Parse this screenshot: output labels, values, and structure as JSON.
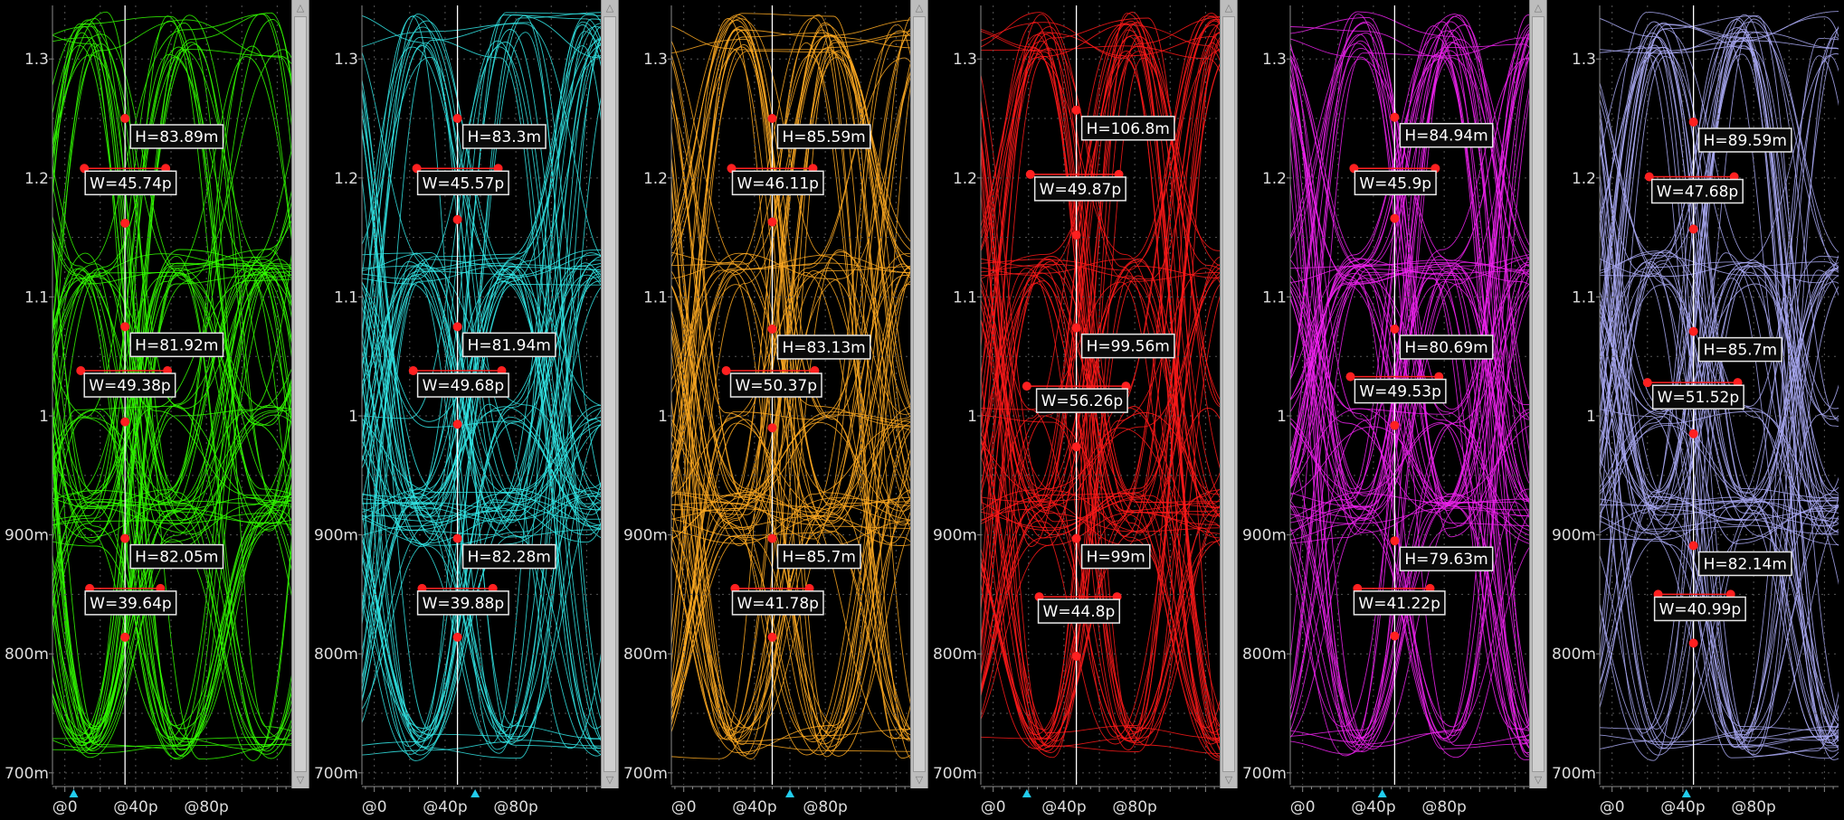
{
  "colors": {
    "background": "#000000",
    "axis": "#8a8a8a",
    "grid": "#555555",
    "marker": "#ff2020",
    "cursor_line": "#ffffff",
    "time_marker": "#22ccee"
  },
  "chart_data": [
    {
      "type": "scatter",
      "name": "eye-diagram",
      "color": "#33ff00",
      "y_ticks": [
        "1.3",
        "1.2",
        "1.1",
        "1",
        "900m",
        "800m",
        "700m"
      ],
      "y_tick_values": [
        1.3,
        1.2,
        1.1,
        1.0,
        0.9,
        0.8,
        0.7
      ],
      "x_ticks": [
        "@0",
        "@40p",
        "@80p"
      ],
      "x_tick_values": [
        0,
        40,
        80
      ],
      "ylim": [
        0.69,
        1.345
      ],
      "xlim": [
        -7,
        128
      ],
      "cursor_x": 34,
      "time_marker_x": 5,
      "measurements": [
        {
          "h_label": "H=83.89m",
          "w_label": "W=45.74p",
          "y_top": 1.25,
          "y_bot": 1.162,
          "w_y": 1.208,
          "w_x1": 11,
          "w_x2": 57
        },
        {
          "h_label": "H=81.92m",
          "w_label": "W=49.38p",
          "y_top": 1.075,
          "y_bot": 0.995,
          "w_y": 1.038,
          "w_x1": 9,
          "w_x2": 58
        },
        {
          "h_label": "H=82.05m",
          "w_label": "W=39.64p",
          "y_top": 0.897,
          "y_bot": 0.814,
          "w_y": 0.855,
          "w_x1": 14,
          "w_x2": 54
        }
      ]
    },
    {
      "type": "scatter",
      "name": "eye-diagram",
      "color": "#33e6e6",
      "y_ticks": [
        "1.3",
        "1.2",
        "1.1",
        "1",
        "900m",
        "800m",
        "700m"
      ],
      "y_tick_values": [
        1.3,
        1.2,
        1.1,
        1.0,
        0.9,
        0.8,
        0.7
      ],
      "x_ticks": [
        "@0",
        "@40p",
        "@80p"
      ],
      "x_tick_values": [
        0,
        40,
        80
      ],
      "ylim": [
        0.69,
        1.345
      ],
      "xlim": [
        -7,
        128
      ],
      "cursor_x": 47,
      "time_marker_x": 57,
      "measurements": [
        {
          "h_label": "H=83.3m",
          "w_label": "W=45.57p",
          "y_top": 1.25,
          "y_bot": 1.165,
          "w_y": 1.208,
          "w_x1": 24,
          "w_x2": 70
        },
        {
          "h_label": "H=81.94m",
          "w_label": "W=49.68p",
          "y_top": 1.075,
          "y_bot": 0.993,
          "w_y": 1.038,
          "w_x1": 22,
          "w_x2": 72
        },
        {
          "h_label": "H=82.28m",
          "w_label": "W=39.88p",
          "y_top": 0.897,
          "y_bot": 0.814,
          "w_y": 0.855,
          "w_x1": 27,
          "w_x2": 67
        }
      ]
    },
    {
      "type": "scatter",
      "name": "eye-diagram",
      "color": "#ffaa22",
      "y_ticks": [
        "1.3",
        "1.2",
        "1.1",
        "1",
        "900m",
        "800m",
        "700m"
      ],
      "y_tick_values": [
        1.3,
        1.2,
        1.1,
        1.0,
        0.9,
        0.8,
        0.7
      ],
      "x_ticks": [
        "@0",
        "@40p",
        "@80p"
      ],
      "x_tick_values": [
        0,
        40,
        80
      ],
      "ylim": [
        0.69,
        1.345
      ],
      "xlim": [
        -7,
        128
      ],
      "cursor_x": 50,
      "time_marker_x": 60,
      "measurements": [
        {
          "h_label": "H=85.59m",
          "w_label": "W=46.11p",
          "y_top": 1.25,
          "y_bot": 1.163,
          "w_y": 1.208,
          "w_x1": 27,
          "w_x2": 73
        },
        {
          "h_label": "H=83.13m",
          "w_label": "W=50.37p",
          "y_top": 1.073,
          "y_bot": 0.99,
          "w_y": 1.038,
          "w_x1": 24,
          "w_x2": 74
        },
        {
          "h_label": "H=85.7m",
          "w_label": "W=41.78p",
          "y_top": 0.897,
          "y_bot": 0.814,
          "w_y": 0.855,
          "w_x1": 29,
          "w_x2": 71
        }
      ]
    },
    {
      "type": "scatter",
      "name": "eye-diagram",
      "color": "#ff1a1a",
      "y_ticks": [
        "1.3",
        "1.2",
        "1.1",
        "1",
        "900m",
        "800m",
        "700m"
      ],
      "y_tick_values": [
        1.3,
        1.2,
        1.1,
        1.0,
        0.9,
        0.8,
        0.7
      ],
      "x_ticks": [
        "@0",
        "@40p",
        "@80p"
      ],
      "x_tick_values": [
        0,
        40,
        80
      ],
      "ylim": [
        0.69,
        1.345
      ],
      "xlim": [
        -7,
        128
      ],
      "cursor_x": 47,
      "time_marker_x": 19,
      "measurements": [
        {
          "h_label": "H=106.8m",
          "w_label": "W=49.87p",
          "y_top": 1.257,
          "y_bot": 1.152,
          "w_y": 1.203,
          "w_x1": 21,
          "w_x2": 71
        },
        {
          "h_label": "H=99.56m",
          "w_label": "W=56.26p",
          "y_top": 1.074,
          "y_bot": 0.974,
          "w_y": 1.025,
          "w_x1": 19,
          "w_x2": 75
        },
        {
          "h_label": "H=99m",
          "w_label": "W=44.8p",
          "y_top": 0.897,
          "y_bot": 0.798,
          "w_y": 0.848,
          "w_x1": 26,
          "w_x2": 70
        }
      ]
    },
    {
      "type": "scatter",
      "name": "eye-diagram",
      "color": "#ee22ee",
      "y_ticks": [
        "1.3",
        "1.2",
        "1.1",
        "1",
        "900m",
        "800m",
        "700m"
      ],
      "y_tick_values": [
        1.3,
        1.2,
        1.1,
        1.0,
        0.9,
        0.8,
        0.7
      ],
      "x_ticks": [
        "@0",
        "@40p",
        "@80p"
      ],
      "x_tick_values": [
        0,
        40,
        80
      ],
      "ylim": [
        0.69,
        1.345
      ],
      "xlim": [
        -7,
        128
      ],
      "cursor_x": 52,
      "time_marker_x": 45,
      "measurements": [
        {
          "h_label": "H=84.94m",
          "w_label": "W=45.9p",
          "y_top": 1.251,
          "y_bot": 1.166,
          "w_y": 1.208,
          "w_x1": 29,
          "w_x2": 75
        },
        {
          "h_label": "H=80.69m",
          "w_label": "W=49.53p",
          "y_top": 1.073,
          "y_bot": 0.992,
          "w_y": 1.033,
          "w_x1": 27,
          "w_x2": 77
        },
        {
          "h_label": "H=79.63m",
          "w_label": "W=41.22p",
          "y_top": 0.895,
          "y_bot": 0.815,
          "w_y": 0.855,
          "w_x1": 31,
          "w_x2": 72
        }
      ]
    },
    {
      "type": "scatter",
      "name": "eye-diagram",
      "color": "#aaaaf5",
      "y_ticks": [
        "1.3",
        "1.2",
        "1.1",
        "1",
        "900m",
        "800m",
        "700m"
      ],
      "y_tick_values": [
        1.3,
        1.2,
        1.1,
        1.0,
        0.9,
        0.8,
        0.7
      ],
      "x_ticks": [
        "@0",
        "@40p",
        "@80p"
      ],
      "x_tick_values": [
        0,
        40,
        80
      ],
      "ylim": [
        0.69,
        1.345
      ],
      "xlim": [
        -7,
        128
      ],
      "cursor_x": 46,
      "time_marker_x": 42,
      "measurements": [
        {
          "h_label": "H=89.59m",
          "w_label": "W=47.68p",
          "y_top": 1.247,
          "y_bot": 1.157,
          "w_y": 1.201,
          "w_x1": 21,
          "w_x2": 69
        },
        {
          "h_label": "H=85.7m",
          "w_label": "W=51.52p",
          "y_top": 1.071,
          "y_bot": 0.985,
          "w_y": 1.028,
          "w_x1": 20,
          "w_x2": 71
        },
        {
          "h_label": "H=82.14m",
          "w_label": "W=40.99p",
          "y_top": 0.891,
          "y_bot": 0.809,
          "w_y": 0.85,
          "w_x1": 26,
          "w_x2": 67
        }
      ]
    }
  ]
}
